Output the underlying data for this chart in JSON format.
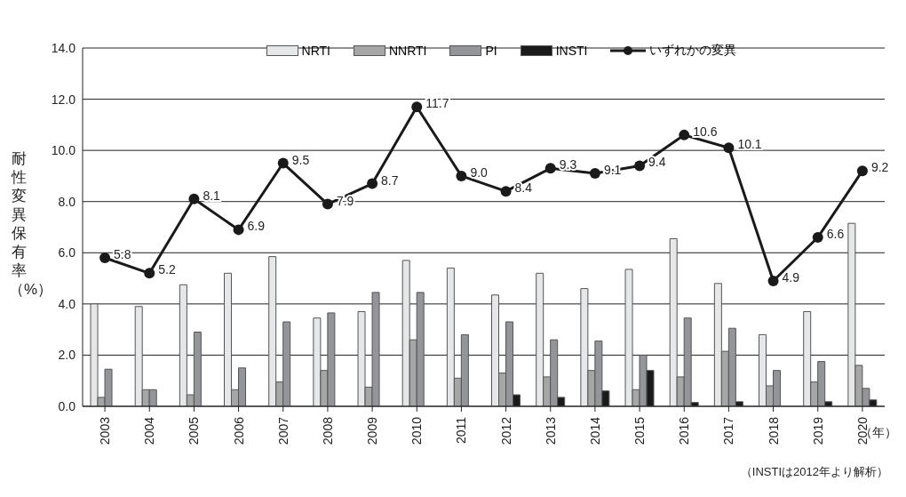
{
  "chart_data": {
    "type": "bar",
    "categories": [
      "2003",
      "2004",
      "2005",
      "2006",
      "2007",
      "2008",
      "2009",
      "2010",
      "2011",
      "2012",
      "2013",
      "2014",
      "2015",
      "2016",
      "2017",
      "2018",
      "2019",
      "2020"
    ],
    "series": [
      {
        "name": "NRTI",
        "color": "#e6e7e8",
        "values": [
          4.0,
          3.9,
          4.75,
          5.2,
          5.85,
          3.45,
          3.7,
          5.7,
          5.4,
          4.35,
          5.2,
          4.6,
          5.35,
          6.55,
          4.8,
          2.8,
          3.7,
          7.15
        ]
      },
      {
        "name": "NNRTI",
        "color": "#a6a6a6",
        "values": [
          0.35,
          0.65,
          0.45,
          0.65,
          0.95,
          1.4,
          0.75,
          2.6,
          1.1,
          1.3,
          1.15,
          1.4,
          0.65,
          1.15,
          2.15,
          0.8,
          0.95,
          1.6
        ]
      },
      {
        "name": "PI",
        "color": "#939598",
        "values": [
          1.45,
          0.65,
          2.9,
          1.5,
          3.3,
          3.65,
          4.45,
          4.45,
          2.8,
          3.3,
          2.6,
          2.55,
          2.0,
          3.45,
          3.05,
          1.4,
          1.75,
          0.7
        ]
      },
      {
        "name": "INSTI",
        "color": "#1a1a1a",
        "values": [
          null,
          null,
          null,
          null,
          null,
          null,
          null,
          null,
          null,
          0.45,
          0.35,
          0.6,
          1.4,
          0.15,
          0.18,
          0,
          0.18,
          0.25
        ]
      },
      {
        "name": "いずれかの変異",
        "type": "line",
        "color": "#1a1a1a",
        "values": [
          5.8,
          5.2,
          8.1,
          6.9,
          9.5,
          7.9,
          8.7,
          11.7,
          9.0,
          8.4,
          9.3,
          9.1,
          9.4,
          10.6,
          10.1,
          4.9,
          6.6,
          9.2
        ],
        "value_labels": [
          "5.8",
          "5.2",
          "8.1",
          "6.9",
          "9.5",
          "7.9",
          "8.7",
          "11.7",
          "9.0",
          "8.4",
          "9.3",
          "9.1",
          "9.4",
          "10.6",
          "10.1",
          "4.9",
          "6.6",
          "9.2"
        ]
      }
    ],
    "ylabel": "耐性変異保有率（%）",
    "xlabel": "（年）",
    "ylim": [
      0,
      14
    ],
    "yticks": [
      {
        "value": 0,
        "label": "0.0"
      },
      {
        "value": 2,
        "label": "2.0"
      },
      {
        "value": 4,
        "label": "4.0"
      },
      {
        "value": 6,
        "label": "6.0"
      },
      {
        "value": 8,
        "label": "8.0"
      },
      {
        "value": 10,
        "label": "10.0"
      },
      {
        "value": 12,
        "label": "12.0"
      },
      {
        "value": 14,
        "label": "14.0"
      }
    ],
    "grid": "y",
    "legend": "top",
    "marker": "circle",
    "line_style": "solid",
    "annotations": [
      "（INSTIは2012年より解析）"
    ]
  }
}
